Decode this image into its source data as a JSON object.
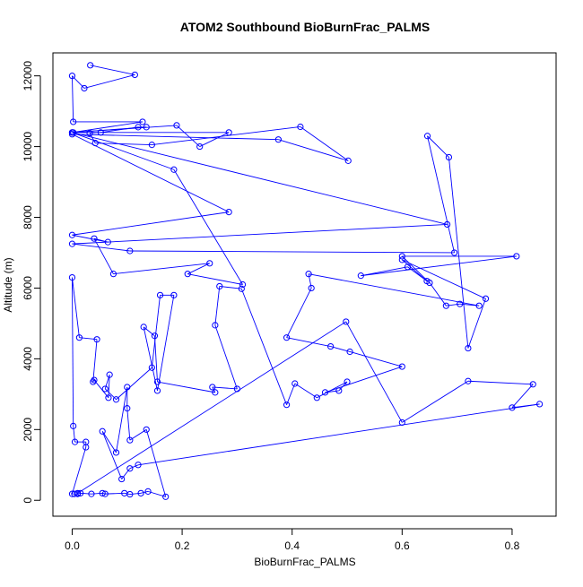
{
  "chart_data": {
    "type": "line",
    "title": "ATOM2 Southbound BioBurnFrac_PALMS",
    "xlabel": "BioBurnFrac_PALMS",
    "ylabel": "Altitude (m)",
    "xlim": [
      -0.035,
      0.88
    ],
    "ylim": [
      -450,
      12650
    ],
    "xticks": [
      0.0,
      0.2,
      0.4,
      0.6,
      0.8
    ],
    "xtick_labels": [
      "0.0",
      "0.2",
      "0.4",
      "0.6",
      "0.8"
    ],
    "yticks": [
      0,
      2000,
      4000,
      6000,
      8000,
      10000,
      12000
    ],
    "ytick_labels": [
      "0",
      "2000",
      "4000",
      "6000",
      "8000",
      "10000",
      "12000"
    ],
    "grid": false,
    "series": [
      {
        "color": "#0000ff",
        "marker": "open-circle",
        "points": [
          [
            0.033,
            12300
          ],
          [
            0.114,
            12030
          ],
          [
            0.022,
            11650
          ],
          [
            0.0,
            12000
          ],
          [
            0.002,
            10700
          ],
          [
            0.128,
            10700
          ],
          [
            0.0,
            10400
          ],
          [
            0.19,
            10600
          ],
          [
            0.232,
            10000
          ],
          [
            0.285,
            10400
          ],
          [
            0.002,
            10400
          ],
          [
            0.135,
            10550
          ],
          [
            0.12,
            10550
          ],
          [
            0.052,
            10400
          ],
          [
            0.032,
            10380
          ],
          [
            0.042,
            10100
          ],
          [
            0.145,
            10050
          ],
          [
            0.415,
            10560
          ],
          [
            0.502,
            9600
          ],
          [
            0.375,
            10200
          ],
          [
            0.0,
            10350
          ],
          [
            0.285,
            8150
          ],
          [
            0.0,
            7500
          ],
          [
            0.065,
            7300
          ],
          [
            0.04,
            7400
          ],
          [
            0.075,
            6400
          ],
          [
            0.25,
            6700
          ],
          [
            0.21,
            6400
          ],
          [
            0.31,
            6100
          ],
          [
            0.185,
            9350
          ],
          [
            0.0,
            10400
          ],
          [
            0.682,
            7800
          ],
          [
            0.0,
            7250
          ],
          [
            0.105,
            7050
          ],
          [
            0.695,
            7000
          ],
          [
            0.646,
            10300
          ],
          [
            0.685,
            9700
          ],
          [
            0.72,
            4300
          ],
          [
            0.752,
            5700
          ],
          [
            0.6,
            6800
          ],
          [
            0.645,
            6200
          ],
          [
            0.61,
            6600
          ],
          [
            0.525,
            6350
          ],
          [
            0.808,
            6900
          ],
          [
            0.6,
            6900
          ],
          [
            0.65,
            6150
          ],
          [
            0.68,
            5500
          ],
          [
            0.705,
            5550
          ],
          [
            0.74,
            5500
          ],
          [
            0.43,
            6400
          ],
          [
            0.435,
            6000
          ],
          [
            0.39,
            4600
          ],
          [
            0.47,
            4350
          ],
          [
            0.505,
            4200
          ],
          [
            0.6,
            3780
          ],
          [
            0.46,
            3050
          ],
          [
            0.485,
            3100
          ],
          [
            0.5,
            3350
          ],
          [
            0.445,
            2900
          ],
          [
            0.405,
            3300
          ],
          [
            0.39,
            2700
          ],
          [
            0.308,
            5980
          ],
          [
            0.268,
            6050
          ],
          [
            0.26,
            4950
          ],
          [
            0.3,
            3150
          ],
          [
            0.255,
            3200
          ],
          [
            0.26,
            3050
          ],
          [
            0.155,
            3350
          ],
          [
            0.15,
            4650
          ],
          [
            0.13,
            4900
          ],
          [
            0.155,
            3100
          ],
          [
            0.185,
            5800
          ],
          [
            0.16,
            5800
          ],
          [
            0.145,
            3750
          ],
          [
            0.08,
            2850
          ],
          [
            0.06,
            3150
          ],
          [
            0.068,
            3550
          ],
          [
            0.066,
            2900
          ],
          [
            0.04,
            3400
          ],
          [
            0.038,
            3350
          ],
          [
            0.045,
            4550
          ],
          [
            0.013,
            4600
          ],
          [
            0.0,
            6300
          ],
          [
            0.002,
            2100
          ],
          [
            0.005,
            1650
          ],
          [
            0.025,
            1650
          ],
          [
            0.025,
            1500
          ],
          [
            0.0,
            180
          ],
          [
            0.004,
            180
          ],
          [
            0.01,
            180
          ],
          [
            0.015,
            200
          ],
          [
            0.035,
            180
          ],
          [
            0.055,
            200
          ],
          [
            0.06,
            180
          ],
          [
            0.095,
            200
          ],
          [
            0.105,
            170
          ],
          [
            0.125,
            200
          ],
          [
            0.138,
            250
          ],
          [
            0.17,
            100
          ],
          [
            0.135,
            2000
          ],
          [
            0.105,
            1700
          ],
          [
            0.1,
            2600
          ],
          [
            0.1,
            3200
          ],
          [
            0.08,
            1350
          ],
          [
            0.055,
            1950
          ],
          [
            0.09,
            600
          ],
          [
            0.105,
            900
          ],
          [
            0.12,
            1000
          ],
          [
            0.85,
            2720
          ],
          [
            0.8,
            2620
          ],
          [
            0.838,
            3280
          ],
          [
            0.72,
            3370
          ],
          [
            0.6,
            2200
          ],
          [
            0.498,
            5050
          ],
          [
            0.01,
            200
          ]
        ]
      }
    ]
  }
}
